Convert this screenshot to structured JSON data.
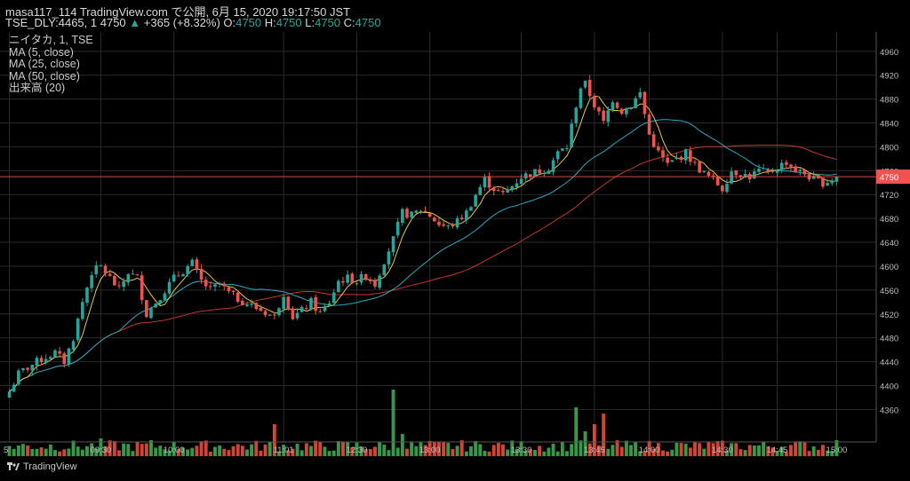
{
  "header": {
    "line1": "masa117_114 TradingView.com で公開, 6月 15, 2020 19:17:50 JST",
    "symbol": "TSE_DLY:4465, 1",
    "last": "4750",
    "arrow": "▲",
    "change": "+365 (+8.32%)",
    "o_label": "O:",
    "o_value": "4750",
    "h_label": "H:",
    "h_value": "4750",
    "l_label": "L:",
    "l_value": "4750",
    "c_label": "C:",
    "c_value": "4750"
  },
  "legend": [
    "ニイタカ, 1, TSE",
    "MA (5, close)",
    "MA (25, close)",
    "MA (50, close)",
    "出来高 (20)"
  ],
  "footer": {
    "brand": "TradingView"
  },
  "colors": {
    "up": "#26a69a",
    "down": "#ef5350",
    "ma5": "#e8c547",
    "ma25": "#2aa8c0",
    "ma50": "#c0392b",
    "vol_up": "#3da852",
    "vol_down": "#e84c3d",
    "grid": "#2a2a2a"
  },
  "chart_data": {
    "type": "candlestick",
    "price_axis_ticks": [
      4360,
      4400,
      4440,
      4480,
      4520,
      4560,
      4600,
      4640,
      4680,
      4720,
      4760,
      4800,
      4840,
      4880,
      4920,
      4960
    ],
    "ylim": [
      4310,
      4985
    ],
    "last_price_label": "4750",
    "last_price": 4750,
    "time_ticks": [
      "5",
      "09:30",
      "10:00",
      "11:01",
      "12:30",
      "13:00",
      "13:30",
      "13:45",
      "14:00",
      "14:30",
      "14:45",
      "15:00"
    ],
    "time_tick_positions": [
      0,
      20,
      36,
      60,
      76,
      92,
      112,
      128,
      140,
      156,
      168,
      181
    ],
    "bar_count": 182,
    "price_anchors": [
      [
        0,
        4390
      ],
      [
        2,
        4420
      ],
      [
        6,
        4440
      ],
      [
        10,
        4455
      ],
      [
        12,
        4440
      ],
      [
        14,
        4480
      ],
      [
        16,
        4540
      ],
      [
        18,
        4590
      ],
      [
        20,
        4600
      ],
      [
        22,
        4580
      ],
      [
        24,
        4560
      ],
      [
        26,
        4590
      ],
      [
        28,
        4580
      ],
      [
        30,
        4520
      ],
      [
        32,
        4540
      ],
      [
        34,
        4560
      ],
      [
        36,
        4580
      ],
      [
        40,
        4605
      ],
      [
        42,
        4575
      ],
      [
        44,
        4560
      ],
      [
        46,
        4570
      ],
      [
        48,
        4555
      ],
      [
        50,
        4545
      ],
      [
        54,
        4530
      ],
      [
        58,
        4515
      ],
      [
        60,
        4555
      ],
      [
        62,
        4515
      ],
      [
        64,
        4525
      ],
      [
        66,
        4540
      ],
      [
        68,
        4520
      ],
      [
        70,
        4540
      ],
      [
        72,
        4575
      ],
      [
        74,
        4580
      ],
      [
        76,
        4575
      ],
      [
        78,
        4585
      ],
      [
        80,
        4570
      ],
      [
        82,
        4610
      ],
      [
        84,
        4645
      ],
      [
        86,
        4690
      ],
      [
        88,
        4685
      ],
      [
        90,
        4695
      ],
      [
        92,
        4685
      ],
      [
        94,
        4670
      ],
      [
        96,
        4665
      ],
      [
        98,
        4675
      ],
      [
        100,
        4690
      ],
      [
        102,
        4720
      ],
      [
        104,
        4745
      ],
      [
        106,
        4730
      ],
      [
        108,
        4720
      ],
      [
        110,
        4735
      ],
      [
        112,
        4750
      ],
      [
        114,
        4755
      ],
      [
        116,
        4760
      ],
      [
        118,
        4765
      ],
      [
        120,
        4790
      ],
      [
        122,
        4800
      ],
      [
        124,
        4870
      ],
      [
        125,
        4900
      ],
      [
        126,
        4905
      ],
      [
        128,
        4870
      ],
      [
        130,
        4840
      ],
      [
        132,
        4880
      ],
      [
        134,
        4860
      ],
      [
        136,
        4870
      ],
      [
        138,
        4890
      ],
      [
        140,
        4820
      ],
      [
        142,
        4790
      ],
      [
        144,
        4770
      ],
      [
        146,
        4780
      ],
      [
        148,
        4790
      ],
      [
        150,
        4770
      ],
      [
        152,
        4755
      ],
      [
        154,
        4745
      ],
      [
        156,
        4730
      ],
      [
        158,
        4760
      ],
      [
        160,
        4755
      ],
      [
        162,
        4750
      ],
      [
        164,
        4760
      ],
      [
        166,
        4755
      ],
      [
        168,
        4765
      ],
      [
        170,
        4775
      ],
      [
        172,
        4760
      ],
      [
        174,
        4755
      ],
      [
        176,
        4745
      ],
      [
        178,
        4740
      ],
      [
        180,
        4745
      ],
      [
        181,
        4750
      ]
    ],
    "volume_peaks": [
      [
        20,
        2
      ],
      [
        31,
        1.8
      ],
      [
        58,
        3.6
      ],
      [
        84,
        7.5
      ],
      [
        86,
        2.5
      ],
      [
        124,
        5.5
      ],
      [
        126,
        2.8
      ],
      [
        128,
        3.6
      ],
      [
        130,
        4.8
      ],
      [
        181,
        1.8
      ]
    ]
  }
}
